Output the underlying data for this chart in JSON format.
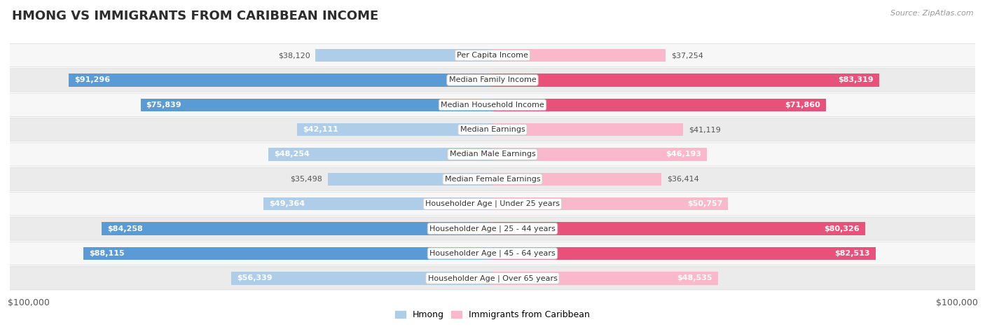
{
  "title": "HMONG VS IMMIGRANTS FROM CARIBBEAN INCOME",
  "source": "Source: ZipAtlas.com",
  "categories": [
    "Per Capita Income",
    "Median Family Income",
    "Median Household Income",
    "Median Earnings",
    "Median Male Earnings",
    "Median Female Earnings",
    "Householder Age | Under 25 years",
    "Householder Age | 25 - 44 years",
    "Householder Age | 45 - 64 years",
    "Householder Age | Over 65 years"
  ],
  "hmong_values": [
    38120,
    91296,
    75839,
    42111,
    48254,
    35498,
    49364,
    84258,
    88115,
    56339
  ],
  "caribbean_values": [
    37254,
    83319,
    71860,
    41119,
    46193,
    36414,
    50757,
    80326,
    82513,
    48535
  ],
  "hmong_light_color": "#aecde8",
  "hmong_dark_color": "#5b9bd5",
  "caribbean_light_color": "#f9b8cc",
  "caribbean_dark_color": "#e8527a",
  "hmong_threshold": 60000,
  "caribbean_threshold": 60000,
  "max_value": 100000,
  "bar_height": 0.52,
  "row_bg_light": "#f7f7f7",
  "row_bg_dark": "#ebebeb",
  "row_border_color": "#d8d8d8",
  "label_bg_color": "#ffffff",
  "label_border_color": "#cccccc",
  "title_fontsize": 13,
  "axis_label_fontsize": 9,
  "bar_label_fontsize": 8,
  "category_fontsize": 8,
  "legend_fontsize": 9,
  "background_color": "#ffffff",
  "inside_label_color": "#ffffff",
  "outside_label_color": "#555555"
}
